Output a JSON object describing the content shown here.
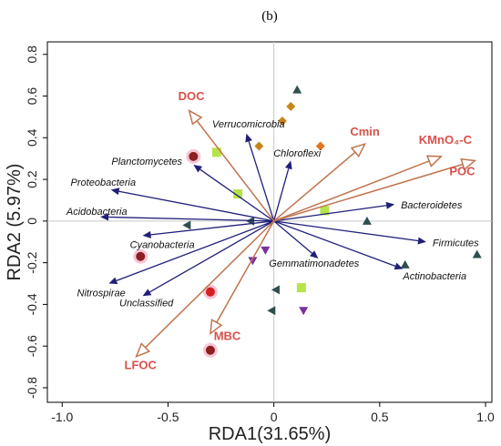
{
  "chart_data": {
    "type": "scatter",
    "panel_label": "(b)",
    "xlabel": "RDA1(31.65%)",
    "ylabel": "RDA2 (5.97%)",
    "xlim": [
      -1.07,
      1.03
    ],
    "ylim": [
      -0.87,
      0.86
    ],
    "xticks": [
      -1.0,
      -0.5,
      0,
      0.5,
      1.0
    ],
    "xtick_labels": [
      "-1.0",
      "-0.5",
      "0",
      "0.5",
      "1.0"
    ],
    "yticks": [
      -0.8,
      -0.6,
      -0.4,
      -0.2,
      0,
      0.2,
      0.4,
      0.6,
      0.8
    ],
    "ytick_labels": [
      "-0.8",
      "-0.6",
      "-0.4",
      "-0.2",
      "0",
      "0.2",
      "0.4",
      "0.6",
      "0.8"
    ],
    "grid": false,
    "colors": {
      "environmental_arrow": "#c0744e",
      "environmental_label": "#d8504a",
      "species_arrow": "#1f1f7a",
      "zero_line": "#c8c8c8"
    },
    "environmental_variables": [
      {
        "name": "DOC",
        "x": -0.4,
        "y": 0.53
      },
      {
        "name": "Cmin",
        "x": 0.43,
        "y": 0.37
      },
      {
        "name": "KMnO₄-C",
        "x": 0.79,
        "y": 0.31
      },
      {
        "name": "POC",
        "x": 0.95,
        "y": 0.29
      },
      {
        "name": "MBC",
        "x": -0.3,
        "y": -0.54
      },
      {
        "name": "LFOC",
        "x": -0.65,
        "y": -0.65
      }
    ],
    "species": [
      {
        "name": "Verrucomicrobia",
        "x": -0.13,
        "y": 0.42
      },
      {
        "name": "Planctomycetes",
        "x": -0.38,
        "y": 0.27
      },
      {
        "name": "Chloroflexi",
        "x": 0.08,
        "y": 0.29
      },
      {
        "name": "Proteobacteria",
        "x": -0.77,
        "y": 0.15
      },
      {
        "name": "Acidobacteria",
        "x": -0.82,
        "y": 0.02
      },
      {
        "name": "Bacteroidetes",
        "x": 0.57,
        "y": 0.08
      },
      {
        "name": "Cyanobacteria",
        "x": -0.62,
        "y": -0.07
      },
      {
        "name": "Firmicutes",
        "x": 0.72,
        "y": -0.1
      },
      {
        "name": "Gemmatimonadetes",
        "x": 0.21,
        "y": -0.18
      },
      {
        "name": "Actinobacteria",
        "x": 0.61,
        "y": -0.23
      },
      {
        "name": "Nitrospirae",
        "x": -0.78,
        "y": -0.3
      },
      {
        "name": "Unclassified",
        "x": -0.62,
        "y": -0.36
      }
    ],
    "samples": [
      {
        "shape": "triangle-up",
        "color": "#2f4f4f",
        "x": 0.11,
        "y": 0.63
      },
      {
        "shape": "diamond",
        "color": "#c8841a",
        "x": 0.08,
        "y": 0.55
      },
      {
        "shape": "diamond",
        "color": "#c8841a",
        "x": 0.04,
        "y": 0.48
      },
      {
        "shape": "diamond",
        "color": "#c8841a",
        "x": -0.07,
        "y": 0.36
      },
      {
        "shape": "diamond",
        "color": "#e07820",
        "x": 0.22,
        "y": 0.36
      },
      {
        "shape": "square",
        "color": "#b6e34a",
        "x": -0.27,
        "y": 0.33
      },
      {
        "shape": "circle",
        "color": "#8c2020",
        "x": -0.38,
        "y": 0.31
      },
      {
        "shape": "square",
        "color": "#b6e34a",
        "x": -0.17,
        "y": 0.13
      },
      {
        "shape": "square",
        "color": "#b6e34a",
        "x": 0.24,
        "y": 0.05
      },
      {
        "shape": "triangle-up",
        "color": "#2f4f4f",
        "x": 0.44,
        "y": 0.0
      },
      {
        "shape": "triangle-left",
        "color": "#2f4f4f",
        "x": -0.41,
        "y": -0.02
      },
      {
        "shape": "triangle-left",
        "color": "#2f4f4f",
        "x": -0.11,
        "y": 0.0
      },
      {
        "shape": "triangle-up",
        "color": "#2f4f4f",
        "x": 0.96,
        "y": -0.16
      },
      {
        "shape": "triangle-up",
        "color": "#2f4f4f",
        "x": 0.62,
        "y": -0.21
      },
      {
        "shape": "circle",
        "color": "#8c2020",
        "x": -0.63,
        "y": -0.17
      },
      {
        "shape": "triangle-down",
        "color": "#7a2fa0",
        "x": -0.04,
        "y": -0.14
      },
      {
        "shape": "triangle-down",
        "color": "#7a2fa0",
        "x": -0.1,
        "y": -0.19
      },
      {
        "shape": "square",
        "color": "#b6e34a",
        "x": 0.13,
        "y": -0.32
      },
      {
        "shape": "triangle-left",
        "color": "#2f4f4f",
        "x": 0.01,
        "y": -0.33
      },
      {
        "shape": "circle",
        "color": "#d42020",
        "x": -0.3,
        "y": -0.34
      },
      {
        "shape": "triangle-left",
        "color": "#2f4f4f",
        "x": -0.01,
        "y": -0.43
      },
      {
        "shape": "triangle-down",
        "color": "#7a2fa0",
        "x": 0.14,
        "y": -0.43
      },
      {
        "shape": "circle",
        "color": "#8c2020",
        "x": -0.3,
        "y": -0.62
      }
    ]
  }
}
